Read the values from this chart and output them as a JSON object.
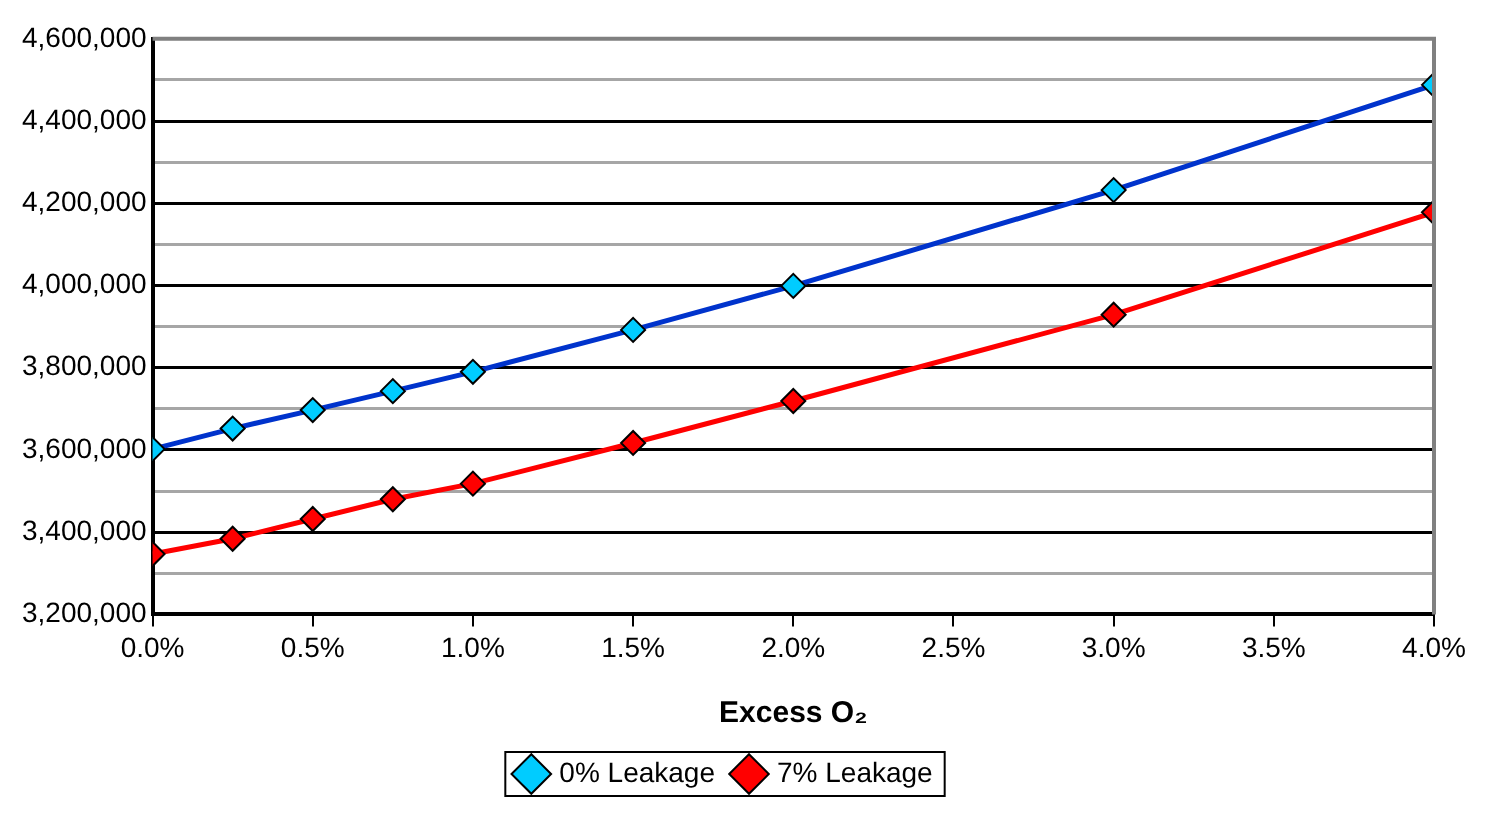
{
  "chart_data": {
    "type": "line",
    "xlabel": "Excess O₂",
    "x": [
      0,
      0.25,
      0.5,
      0.75,
      1.0,
      1.5,
      2.0,
      3.0,
      4.0
    ],
    "series": [
      {
        "name": "0% Leakage",
        "color": "#0033cc",
        "colors": [
          "#00ccff",
          "#00ccff",
          "#00ccff",
          "#00ccff",
          "#00ccff",
          "#00ccff",
          "#00ccff",
          "#00ccff",
          "#00ccff"
        ],
        "values": [
          3602000,
          3652000,
          3697000,
          3743000,
          3790000,
          3892000,
          3999000,
          4232000,
          4488000
        ]
      },
      {
        "name": "7% Leakage",
        "color": "#ff0000",
        "colors": [
          "#ff0000",
          "#ff0000",
          "#ff0000",
          "#ff0000",
          "#ff0000",
          "#ff0000",
          "#ff0000",
          "#ff0000",
          "#ff0000"
        ],
        "values": [
          3347000,
          3384000,
          3432000,
          3480000,
          3518000,
          3617000,
          3719000,
          3929000,
          4178000
        ]
      }
    ],
    "xlim": [
      0,
      4
    ],
    "xticks": [
      {
        "value": 0,
        "label": "0.0%"
      },
      {
        "value": 0.5,
        "label": "0.5%"
      },
      {
        "value": 1,
        "label": "1.0%"
      },
      {
        "value": 1.5,
        "label": "1.5%"
      },
      {
        "value": 2,
        "label": "2.0%"
      },
      {
        "value": 2.5,
        "label": "2.5%"
      },
      {
        "value": 3,
        "label": "3.0%"
      },
      {
        "value": 3.5,
        "label": "3.5%"
      },
      {
        "value": 4,
        "label": "4.0%"
      }
    ],
    "ylim": [
      3200000,
      4600000
    ],
    "yticks": [
      {
        "value": 3200000,
        "label": "3,200,000"
      },
      {
        "value": 3300000,
        "label": null
      },
      {
        "value": 3400000,
        "label": "3,400,000"
      },
      {
        "value": 3500000,
        "label": null
      },
      {
        "value": 3600000,
        "label": "3,600,000"
      },
      {
        "value": 3700000,
        "label": null
      },
      {
        "value": 3800000,
        "label": "3,800,000"
      },
      {
        "value": 3900000,
        "label": null
      },
      {
        "value": 4000000,
        "label": "4,000,000"
      },
      {
        "value": 4100000,
        "label": null
      },
      {
        "value": 4200000,
        "label": "4,200,000"
      },
      {
        "value": 4300000,
        "label": null
      },
      {
        "value": 4400000,
        "label": "4,400,000"
      },
      {
        "value": 4500000,
        "label": null
      },
      {
        "value": 4600000,
        "label": "4,600,000"
      }
    ],
    "grid": "y",
    "legend": "bottom",
    "marker": "diamond",
    "line_style": "solid"
  }
}
